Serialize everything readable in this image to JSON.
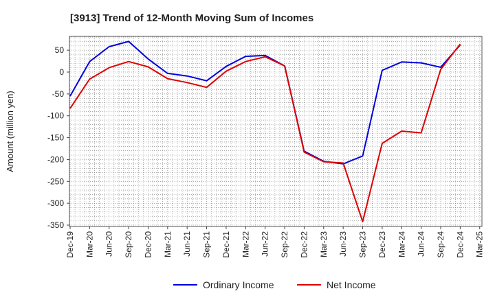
{
  "chart_data": {
    "type": "line",
    "title": "[3913]  Trend of 12-Month Moving Sum of Incomes",
    "ylabel": "Amount (million yen)",
    "xlabel": "",
    "ylim": [
      -350,
      80
    ],
    "yticks": [
      50,
      0,
      -50,
      -100,
      -150,
      -200,
      -250,
      -300,
      -350
    ],
    "grid": true,
    "legend_position": "bottom",
    "categories": [
      "Dec-19",
      "Mar-20",
      "Jun-20",
      "Sep-20",
      "Dec-20",
      "Mar-21",
      "Jun-21",
      "Sep-21",
      "Dec-21",
      "Mar-22",
      "Jun-22",
      "Sep-22",
      "Dec-22",
      "Mar-23",
      "Jun-23",
      "Sep-23",
      "Dec-23",
      "Mar-24",
      "Jun-24",
      "Sep-24",
      "Dec-24",
      "Mar-25"
    ],
    "series": [
      {
        "name": "Ordinary Income",
        "color": "#0000dd",
        "values": [
          -55,
          24,
          58,
          70,
          30,
          -3,
          -9,
          -20,
          13,
          36,
          38,
          14,
          -181,
          -204,
          -210,
          -192,
          4,
          23,
          21,
          11,
          62,
          null
        ]
      },
      {
        "name": "Net Income",
        "color": "#dd0000",
        "values": [
          -83,
          -16,
          10,
          24,
          12,
          -15,
          -24,
          -35,
          2,
          24,
          35,
          14,
          -183,
          -205,
          -208,
          -342,
          -163,
          -135,
          -139,
          6,
          64,
          null
        ]
      }
    ]
  }
}
